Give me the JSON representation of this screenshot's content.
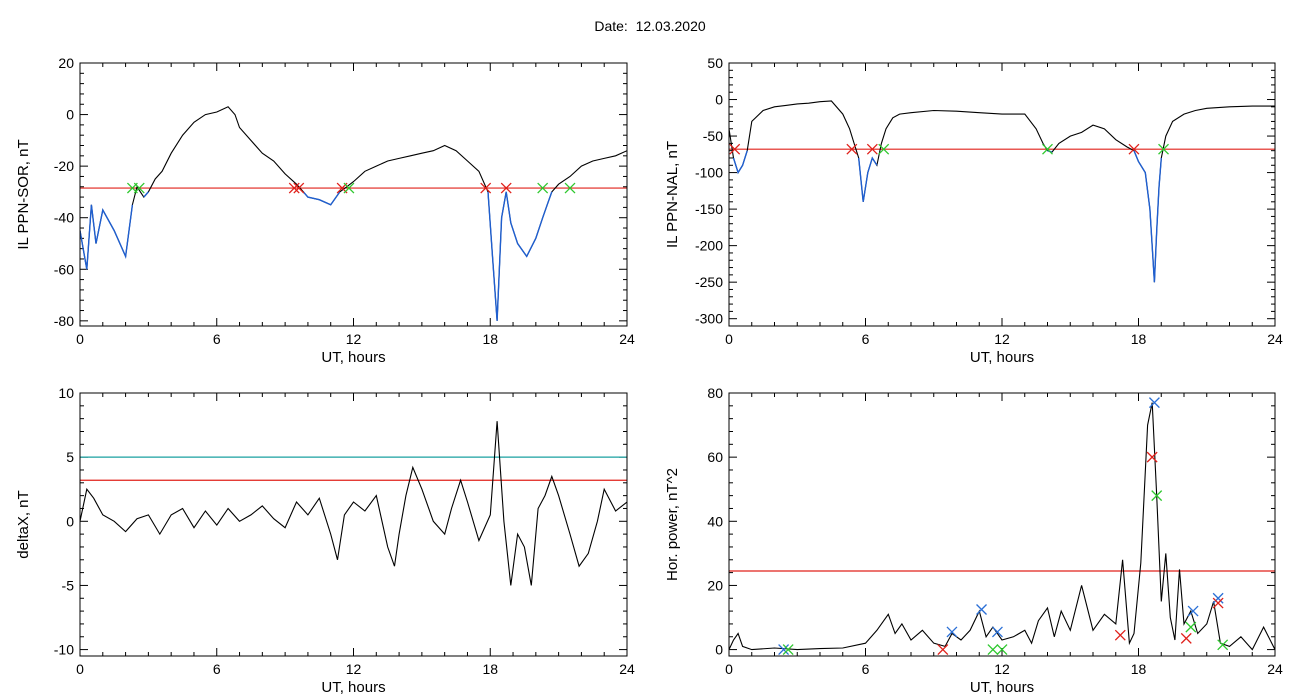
{
  "figure": {
    "title": "Date:  12.03.2020"
  },
  "colors": {
    "trace": "#000000",
    "below_threshold": "#1f5fd0",
    "threshold": "#e0201a",
    "upper_threshold": "#1aa0a0",
    "mark_red": "#e0201a",
    "mark_green": "#2ec82e",
    "mark_blue": "#2a6fd6"
  },
  "chart_data": [
    {
      "id": "p1",
      "type": "line",
      "ylabel": "IL PPN-SOR, nT",
      "xlabel": "UT, hours",
      "xlim": [
        0,
        24
      ],
      "ylim": [
        -82,
        20
      ],
      "xticks": [
        0,
        6,
        12,
        18,
        24
      ],
      "yticks": [
        -80,
        -60,
        -40,
        -20,
        0,
        20
      ],
      "threshold": -28.5,
      "series": [
        {
          "x": [
            0,
            0.3,
            0.5,
            0.7,
            1.0,
            1.5,
            2.0,
            2.3,
            2.5,
            2.8,
            3.0,
            3.3,
            3.6,
            4.0,
            4.5,
            5.0,
            5.5,
            6.0,
            6.5,
            6.8,
            7.0,
            7.5,
            8.0,
            8.5,
            9.0,
            9.5,
            9.8,
            10.0,
            10.5,
            11.0,
            11.4,
            11.7,
            12.0,
            12.5,
            13.0,
            13.5,
            14.0,
            14.5,
            15.0,
            15.5,
            16.0,
            16.5,
            17.0,
            17.5,
            17.9,
            18.1,
            18.3,
            18.5,
            18.7,
            18.9,
            19.2,
            19.6,
            20.0,
            20.3,
            20.5,
            20.7,
            21.0,
            21.5,
            22.0,
            22.5,
            23.0,
            23.5,
            24.0
          ],
          "y": [
            -45,
            -60,
            -35,
            -50,
            -37,
            -45,
            -55,
            -35,
            -28,
            -32,
            -30,
            -25,
            -22,
            -15,
            -8,
            -3,
            0,
            1,
            3,
            0,
            -5,
            -10,
            -15,
            -18,
            -23,
            -27,
            -30,
            -32,
            -33,
            -35,
            -30,
            -28,
            -26,
            -22,
            -20,
            -18,
            -17,
            -16,
            -15,
            -14,
            -12,
            -14,
            -18,
            -22,
            -30,
            -55,
            -80,
            -40,
            -30,
            -42,
            -50,
            -55,
            -48,
            -40,
            -35,
            -30,
            -27,
            -24,
            -20,
            -18,
            -17,
            -16,
            -14
          ]
        }
      ],
      "marks": [
        {
          "x": 2.3,
          "y": -28.5,
          "color": "green"
        },
        {
          "x": 2.6,
          "y": -28.5,
          "color": "green"
        },
        {
          "x": 9.4,
          "y": -28.5,
          "color": "red"
        },
        {
          "x": 9.6,
          "y": -28.5,
          "color": "red"
        },
        {
          "x": 11.5,
          "y": -28.5,
          "color": "red"
        },
        {
          "x": 11.8,
          "y": -28.5,
          "color": "green"
        },
        {
          "x": 17.8,
          "y": -28.5,
          "color": "red"
        },
        {
          "x": 18.7,
          "y": -28.5,
          "color": "red"
        },
        {
          "x": 20.3,
          "y": -28.5,
          "color": "green"
        },
        {
          "x": 21.5,
          "y": -28.5,
          "color": "green"
        }
      ]
    },
    {
      "id": "p2",
      "type": "line",
      "ylabel": "IL PPN-NAL, nT",
      "xlabel": "UT, hours",
      "xlim": [
        0,
        24
      ],
      "ylim": [
        -310,
        50
      ],
      "xticks": [
        0,
        6,
        12,
        18,
        24
      ],
      "yticks": [
        -300,
        -250,
        -200,
        -150,
        -100,
        -50,
        0,
        50
      ],
      "threshold": -68,
      "series": [
        {
          "x": [
            0,
            0.2,
            0.4,
            0.6,
            0.8,
            1.0,
            1.5,
            2.0,
            2.5,
            3.0,
            3.5,
            4.0,
            4.5,
            5.0,
            5.3,
            5.5,
            5.7,
            5.9,
            6.1,
            6.3,
            6.5,
            6.7,
            6.9,
            7.2,
            7.5,
            8.0,
            9.0,
            10.0,
            11.0,
            12.0,
            13.0,
            13.5,
            13.8,
            14.0,
            14.2,
            14.5,
            15.0,
            15.5,
            16.0,
            16.5,
            17.0,
            17.5,
            17.8,
            18.0,
            18.3,
            18.5,
            18.7,
            18.8,
            18.9,
            19.0,
            19.2,
            19.5,
            20.0,
            20.5,
            21.0,
            22.0,
            23.0,
            24.0
          ],
          "y": [
            -40,
            -80,
            -100,
            -90,
            -70,
            -30,
            -15,
            -10,
            -8,
            -6,
            -5,
            -3,
            -2,
            -20,
            -40,
            -60,
            -80,
            -140,
            -100,
            -80,
            -90,
            -60,
            -40,
            -25,
            -20,
            -18,
            -15,
            -16,
            -18,
            -20,
            -20,
            -40,
            -60,
            -70,
            -72,
            -60,
            -50,
            -45,
            -35,
            -40,
            -55,
            -65,
            -70,
            -85,
            -100,
            -150,
            -250,
            -180,
            -120,
            -80,
            -50,
            -30,
            -20,
            -15,
            -12,
            -10,
            -9,
            -9
          ]
        }
      ],
      "marks": [
        {
          "x": 0.25,
          "y": -68,
          "color": "red"
        },
        {
          "x": 5.4,
          "y": -68,
          "color": "red"
        },
        {
          "x": 6.3,
          "y": -68,
          "color": "red"
        },
        {
          "x": 6.8,
          "y": -68,
          "color": "green"
        },
        {
          "x": 14.0,
          "y": -68,
          "color": "green"
        },
        {
          "x": 17.8,
          "y": -68,
          "color": "red"
        },
        {
          "x": 19.1,
          "y": -68,
          "color": "green"
        }
      ]
    },
    {
      "id": "p3",
      "type": "line",
      "ylabel": "deltaX, nT",
      "xlabel": "UT, hours",
      "xlim": [
        0,
        24
      ],
      "ylim": [
        -10.5,
        10
      ],
      "xticks": [
        0,
        6,
        12,
        18,
        24
      ],
      "yticks": [
        -10,
        -5,
        0,
        5,
        10
      ],
      "threshold": 3.2,
      "upper_threshold": 5.0,
      "series": [
        {
          "x": [
            0,
            0.3,
            0.6,
            1.0,
            1.5,
            2.0,
            2.5,
            3.0,
            3.5,
            4.0,
            4.5,
            5.0,
            5.5,
            6.0,
            6.5,
            7.0,
            7.5,
            8.0,
            8.5,
            9.0,
            9.5,
            10.0,
            10.5,
            11.0,
            11.3,
            11.6,
            12.0,
            12.5,
            13.0,
            13.5,
            13.8,
            14.0,
            14.3,
            14.6,
            15.0,
            15.5,
            16.0,
            16.3,
            16.7,
            17.0,
            17.5,
            18.0,
            18.3,
            18.6,
            18.9,
            19.2,
            19.5,
            19.8,
            20.1,
            20.4,
            20.7,
            21.0,
            21.5,
            21.9,
            22.3,
            22.7,
            23.0,
            23.5,
            24.0
          ],
          "y": [
            0,
            2.5,
            1.8,
            0.5,
            0,
            -0.8,
            0.2,
            0.5,
            -1.0,
            0.5,
            1.0,
            -0.5,
            0.8,
            -0.3,
            1.0,
            0,
            0.5,
            1.2,
            0.2,
            -0.5,
            1.5,
            0.5,
            1.8,
            -1.0,
            -3.0,
            0.5,
            1.5,
            0.8,
            2.0,
            -2.0,
            -3.5,
            -1.0,
            2.0,
            4.2,
            2.5,
            0,
            -1.0,
            1.0,
            3.2,
            1.5,
            -1.5,
            0.5,
            7.8,
            0,
            -5.0,
            -1.0,
            -2.0,
            -5.0,
            1.0,
            2.0,
            3.5,
            2.0,
            -1.0,
            -3.5,
            -2.5,
            0,
            2.5,
            0.8,
            1.5
          ]
        }
      ],
      "marks": []
    },
    {
      "id": "p4",
      "type": "line",
      "ylabel": "Hor. power, nT^2",
      "xlabel": "UT, hours",
      "xlim": [
        0,
        24
      ],
      "ylim": [
        -2,
        80
      ],
      "xticks": [
        0,
        6,
        12,
        18,
        24
      ],
      "yticks": [
        0,
        20,
        40,
        60,
        80
      ],
      "threshold": 24.5,
      "series": [
        {
          "x": [
            0,
            0.2,
            0.4,
            0.6,
            1.0,
            2.0,
            3.0,
            4.0,
            5.0,
            6.0,
            6.5,
            7.0,
            7.3,
            7.6,
            8.0,
            8.5,
            9.0,
            9.5,
            9.8,
            10.2,
            10.6,
            11.0,
            11.3,
            11.6,
            12.0,
            12.5,
            13.0,
            13.3,
            13.6,
            14.0,
            14.3,
            14.6,
            15.0,
            15.5,
            16.0,
            16.5,
            17.0,
            17.3,
            17.6,
            17.8,
            18.1,
            18.4,
            18.6,
            18.8,
            19.0,
            19.2,
            19.4,
            19.6,
            19.8,
            20.0,
            20.3,
            20.6,
            21.0,
            21.3,
            21.6,
            22.0,
            22.5,
            23.0,
            23.5,
            24.0
          ],
          "y": [
            0,
            3,
            5,
            1,
            0,
            0.5,
            0,
            0.3,
            0.5,
            2,
            6,
            11,
            5,
            8,
            3,
            6,
            2,
            1,
            5,
            3,
            6,
            12,
            4,
            7,
            3,
            4,
            6,
            2,
            9,
            13,
            4,
            12,
            6,
            20,
            6,
            11,
            8,
            28,
            2,
            5,
            27,
            70,
            77,
            48,
            15,
            30,
            10,
            3,
            25,
            8,
            12,
            5,
            8,
            15,
            2,
            1,
            4,
            0,
            7,
            0
          ]
        }
      ],
      "marks": [
        {
          "x": 2.4,
          "y": 0,
          "color": "blue"
        },
        {
          "x": 2.6,
          "y": 0,
          "color": "green"
        },
        {
          "x": 9.4,
          "y": 0,
          "color": "red"
        },
        {
          "x": 9.8,
          "y": 5.5,
          "color": "blue"
        },
        {
          "x": 11.1,
          "y": 12.5,
          "color": "blue"
        },
        {
          "x": 11.8,
          "y": 5.5,
          "color": "blue"
        },
        {
          "x": 11.6,
          "y": 0,
          "color": "green"
        },
        {
          "x": 12.0,
          "y": 0,
          "color": "green"
        },
        {
          "x": 17.2,
          "y": 4.5,
          "color": "red"
        },
        {
          "x": 18.7,
          "y": 77,
          "color": "blue"
        },
        {
          "x": 18.6,
          "y": 60,
          "color": "red"
        },
        {
          "x": 18.8,
          "y": 48,
          "color": "green"
        },
        {
          "x": 20.1,
          "y": 3.5,
          "color": "red"
        },
        {
          "x": 20.4,
          "y": 12,
          "color": "blue"
        },
        {
          "x": 20.3,
          "y": 7,
          "color": "green"
        },
        {
          "x": 21.5,
          "y": 16,
          "color": "blue"
        },
        {
          "x": 21.5,
          "y": 14.5,
          "color": "red"
        },
        {
          "x": 21.7,
          "y": 1.5,
          "color": "green"
        }
      ]
    }
  ]
}
